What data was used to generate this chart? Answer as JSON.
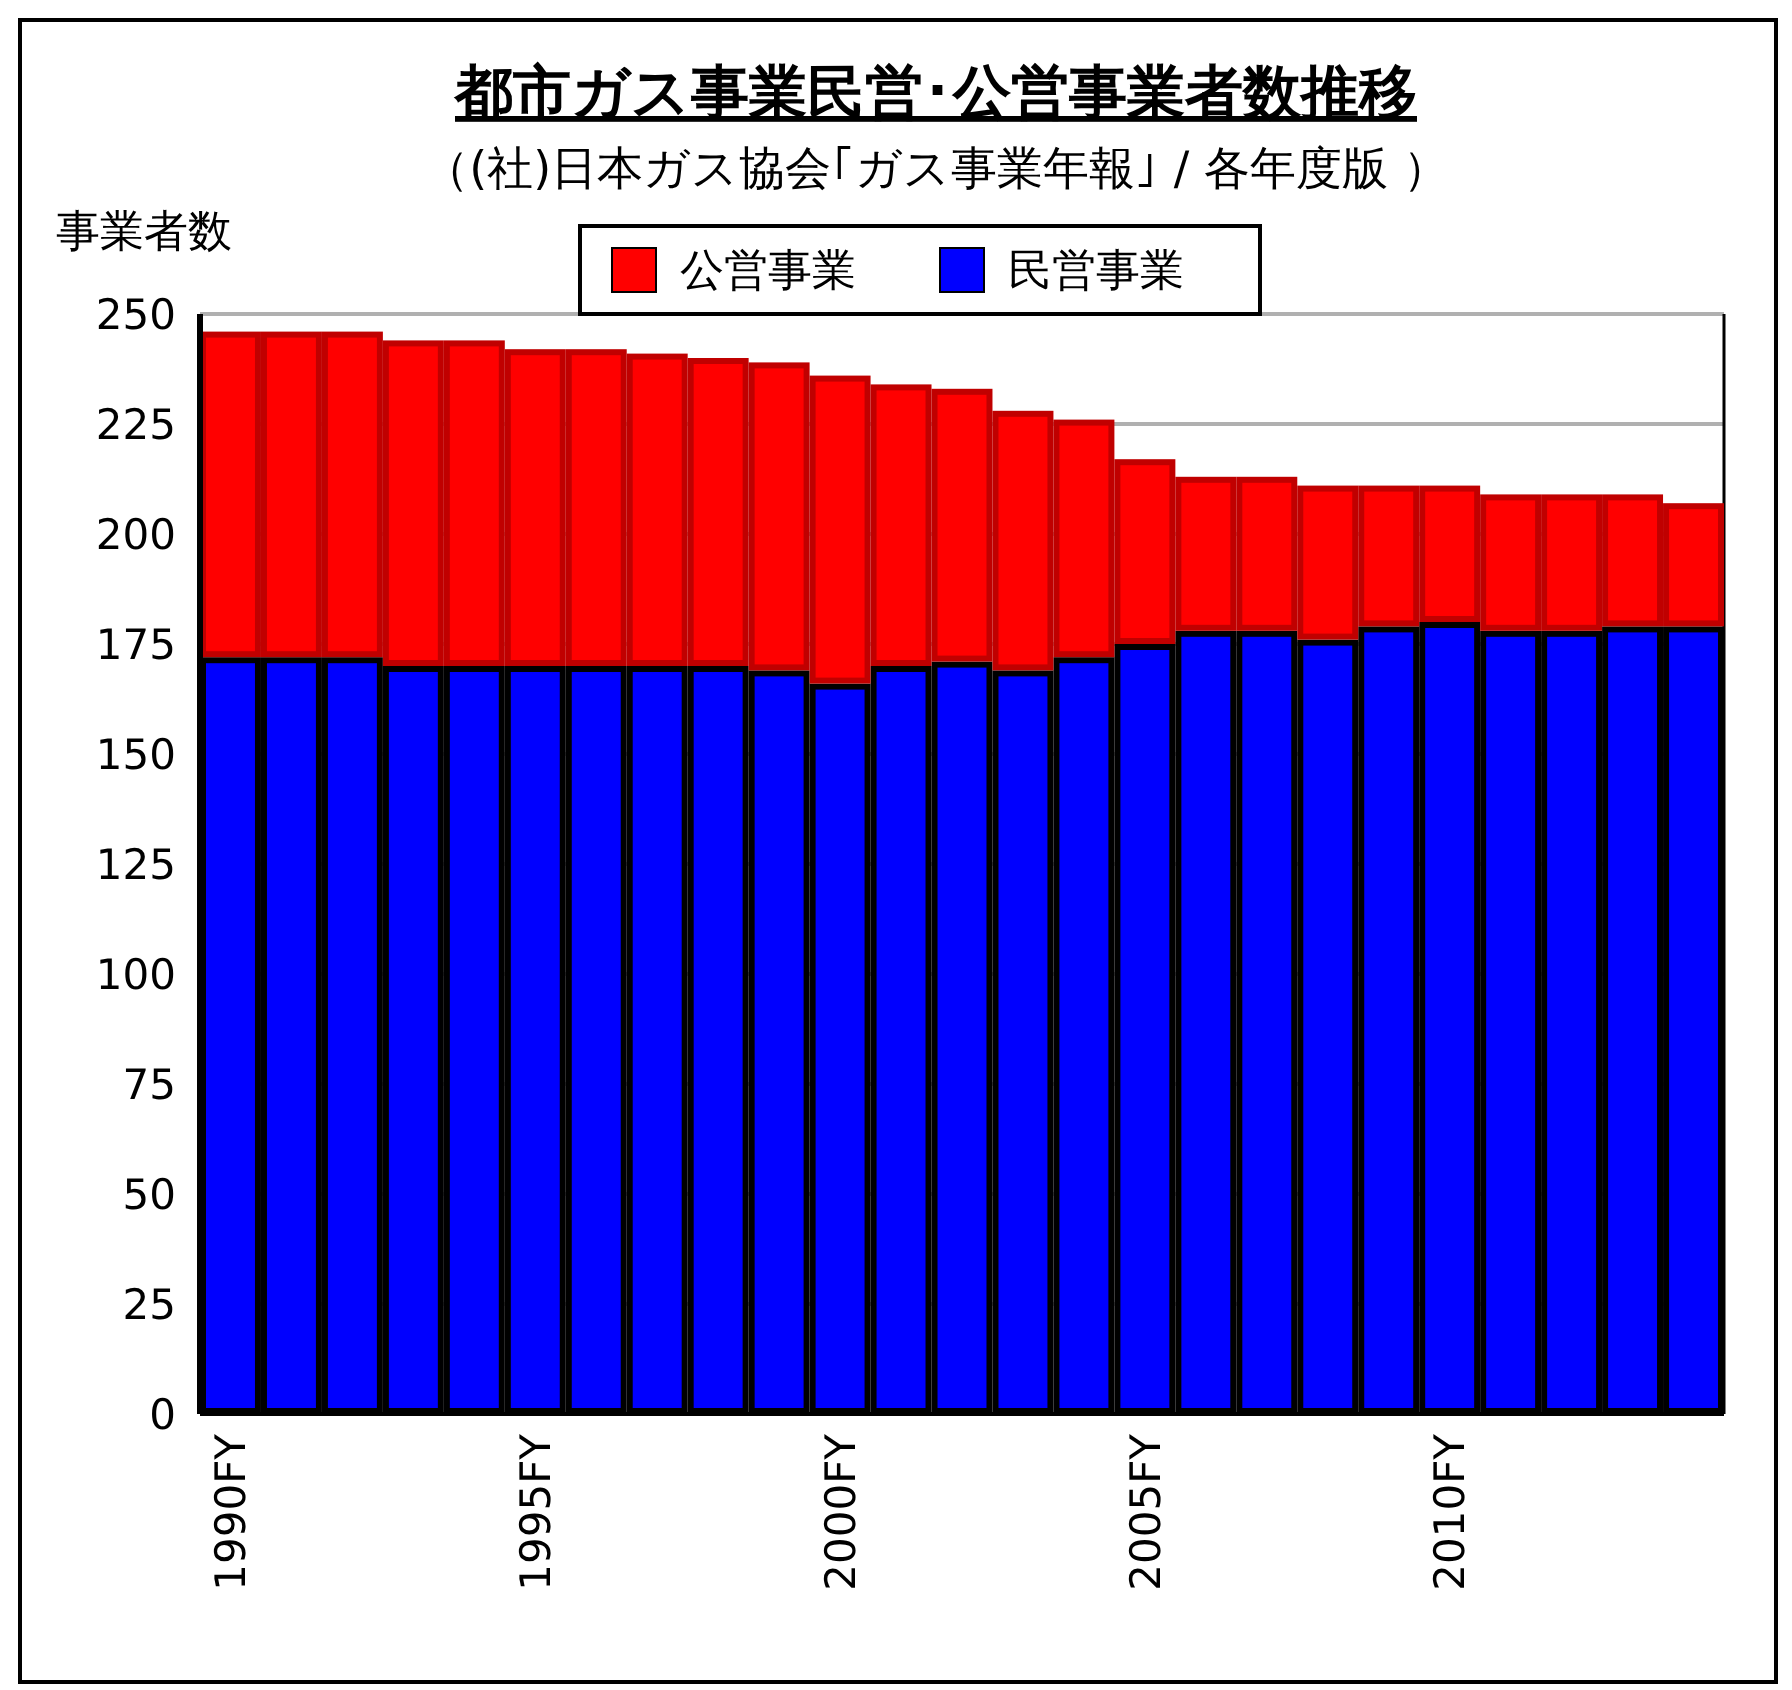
{
  "chart_data": {
    "type": "bar",
    "stacked": true,
    "title": "都市ガス事業民営･公営事業者数推移",
    "subtitle": "（(社)日本ガス協会｢ガス事業年報｣ / 各年度版 ）",
    "ylabel": "事業者数",
    "categories": [
      "1990FY",
      null,
      null,
      null,
      null,
      "1995FY",
      null,
      null,
      null,
      null,
      "2000FY",
      null,
      null,
      null,
      null,
      "2005FY",
      null,
      null,
      null,
      null,
      "2010FY",
      null,
      null,
      null,
      null
    ],
    "series": [
      {
        "name": "民営事業",
        "color": "#0000ff",
        "values": [
          172,
          172,
          172,
          170,
          170,
          170,
          170,
          170,
          170,
          169,
          166,
          170,
          171,
          169,
          172,
          175,
          178,
          178,
          176,
          179,
          180,
          178,
          178,
          179,
          179
        ]
      },
      {
        "name": "公営事業",
        "color": "#ff0000",
        "values": [
          74,
          74,
          74,
          74,
          74,
          72,
          72,
          71,
          70,
          70,
          70,
          64,
          62,
          59,
          54,
          42,
          35,
          35,
          35,
          32,
          31,
          31,
          31,
          30,
          28
        ]
      }
    ],
    "ylim": [
      0,
      250
    ],
    "yticks": [
      0,
      25,
      50,
      75,
      100,
      125,
      150,
      175,
      200,
      225,
      250
    ],
    "grid": "y",
    "legend": "top"
  }
}
